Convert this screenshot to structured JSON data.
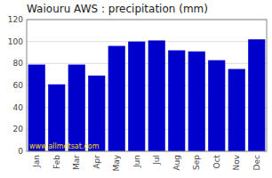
{
  "chart_data": {
    "type": "bar",
    "title": "Waiouru AWS : precipitation (mm)",
    "categories": [
      "Jan",
      "Feb",
      "Mar",
      "Apr",
      "May",
      "Jun",
      "Jul",
      "Aug",
      "Sep",
      "Oct",
      "Nov",
      "Dec"
    ],
    "values": [
      79,
      61,
      79,
      69,
      96,
      100,
      101,
      92,
      91,
      83,
      75,
      102
    ],
    "color": "#0000CC",
    "ylim": [
      0,
      120
    ],
    "yticks": [
      0,
      20,
      40,
      60,
      80,
      100,
      120
    ],
    "grid": true,
    "annotation": "www.allmetsat.com"
  }
}
